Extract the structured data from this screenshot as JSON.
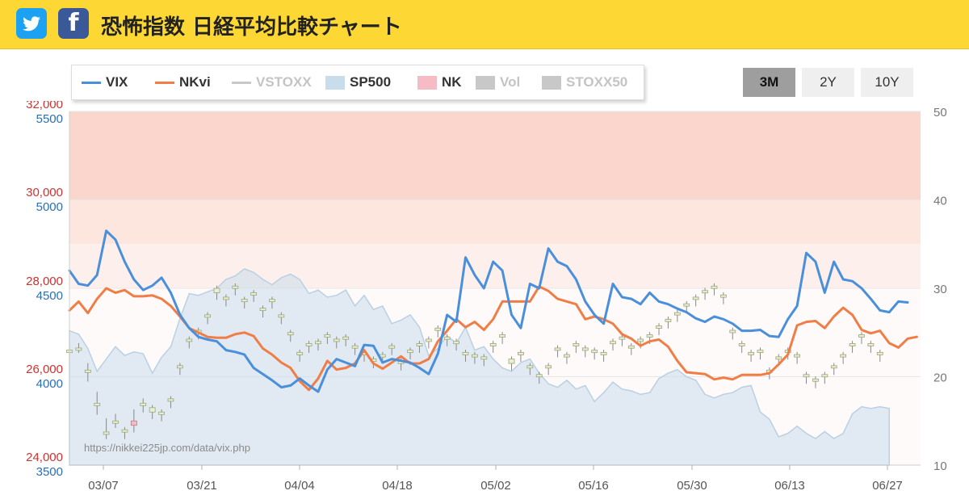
{
  "header": {
    "title": "恐怖指数 日経平均比較チャート",
    "twitter_icon": "twitter-icon",
    "facebook_icon": "facebook-icon",
    "facebook_glyph": "f",
    "colors": {
      "bar": "#fdd835",
      "twitter": "#1da1f2",
      "facebook": "#3b5998"
    }
  },
  "legend": [
    {
      "label": "VIX",
      "kind": "line",
      "color": "#4a8fdb",
      "dim": false
    },
    {
      "label": "NKvi",
      "kind": "line",
      "color": "#f07d45",
      "dim": false
    },
    {
      "label": "VSTOXX",
      "kind": "line",
      "color": "#c8c8c8",
      "dim": true
    },
    {
      "label": "SP500",
      "kind": "box",
      "color": "#c9dceb",
      "dim": false
    },
    {
      "label": "NK",
      "kind": "box",
      "color": "#f5bcc6",
      "dim": false
    },
    {
      "label": "Vol",
      "kind": "box",
      "color": "#c8c8c8",
      "dim": true
    },
    {
      "label": "STOXX50",
      "kind": "box",
      "color": "#c8c8c8",
      "dim": true
    }
  ],
  "range_buttons": [
    {
      "label": "3M",
      "active": true
    },
    {
      "label": "2Y",
      "active": false
    },
    {
      "label": "10Y",
      "active": false
    }
  ],
  "watermark": "https://nikkei225jp.com/data/vix.php",
  "chart_data": {
    "type": "line",
    "x_ticks": [
      "03/07",
      "03/21",
      "04/04",
      "04/18",
      "05/02",
      "05/16",
      "05/30",
      "06/13",
      "06/27"
    ],
    "y_left_nk": {
      "ticks": [
        "32,000",
        "30,000",
        "28,000",
        "26,000",
        "24,000"
      ],
      "range": [
        24000,
        32000
      ],
      "color": "#cc3333"
    },
    "y_left_sp": {
      "ticks": [
        "5500",
        "5000",
        "4500",
        "4000",
        "3500"
      ],
      "range": [
        3500,
        5500
      ],
      "color": "#2a6fb5"
    },
    "y_right": {
      "ticks": [
        "50",
        "40",
        "30",
        "20",
        "10"
      ],
      "range": [
        10,
        50
      ],
      "color": "#777777"
    },
    "zones": [
      {
        "from": 40,
        "to": 50,
        "color": "#fbd6cc"
      },
      {
        "from": 35,
        "to": 40,
        "color": "#fde6de"
      },
      {
        "from": 30,
        "to": 35,
        "color": "#fdf0ec"
      },
      {
        "from": 10,
        "to": 30,
        "color": "#fffafa"
      }
    ],
    "series": [
      {
        "name": "VIX",
        "color": "#4a8fdb",
        "values": [
          32,
          30.5,
          30.3,
          31.5,
          36.5,
          35.5,
          33,
          31,
          29.8,
          30.3,
          31.2,
          29.5,
          27,
          25.5,
          24.5,
          24.2,
          24,
          23,
          22.8,
          22.5,
          21,
          20.3,
          19.6,
          18.8,
          19,
          19.8,
          19,
          18.3,
          20.8,
          22,
          21.6,
          21.2,
          23.6,
          23.5,
          21.6,
          22,
          21.8,
          21.6,
          21,
          20.3,
          22.6,
          27,
          26.2,
          33.5,
          31.5,
          30,
          33,
          32,
          27,
          25.5,
          30.5,
          30,
          34.5,
          33,
          32.5,
          31,
          28.5,
          27,
          26,
          30.5,
          29,
          28.8,
          28.2,
          29.5,
          28.5,
          28.2,
          27.7,
          27.3,
          26.6,
          26.2,
          26.8,
          26.5,
          26,
          25.2,
          25.2,
          25.3,
          24.6,
          24.5,
          26.5,
          28,
          34,
          33,
          29.5,
          33,
          31,
          30.8,
          30,
          28.8,
          27.5,
          27.3,
          28.5,
          28.4
        ]
      },
      {
        "name": "NKvi",
        "color": "#f07d45",
        "values": [
          27.5,
          28.5,
          27.2,
          28.8,
          30,
          29.5,
          29.8,
          29.1,
          29.1,
          29.2,
          28.8,
          28,
          26.8,
          25.5,
          25,
          24.5,
          24.4,
          24.4,
          24.8,
          25,
          24.6,
          23.2,
          22.5,
          21.6,
          21,
          19.5,
          18.5,
          19.8,
          21.8,
          20.8,
          21,
          21.5,
          23,
          21.5,
          20.9,
          21.6,
          22.3,
          21.5,
          21.5,
          22,
          24,
          25.2,
          26.5,
          25.6,
          26.2,
          25.3,
          26.5,
          28.5,
          28.5,
          28.5,
          28.5,
          30.2,
          29.7,
          28.8,
          28.5,
          28.2,
          26.5,
          26.8,
          26.5,
          26,
          24.8,
          24.3,
          23.5,
          24,
          24.2,
          23.4,
          21.8,
          20.5,
          20.4,
          20.3,
          19.7,
          19.9,
          19.7,
          20.2,
          20.2,
          20.2,
          20.4,
          21.4,
          22.5,
          25.8,
          26.2,
          26.3,
          25.5,
          26.8,
          27.8,
          27,
          25.3,
          24.9,
          25.2,
          23.8,
          23.3,
          24.3,
          24.5
        ]
      },
      {
        "name": "SP500",
        "color": "#c9dceb",
        "values": [
          4260,
          4240,
          4160,
          4030,
          4100,
          4170,
          4120,
          4140,
          4130,
          4020,
          4110,
          4170,
          4330,
          4470,
          4460,
          4480,
          4500,
          4550,
          4570,
          4610,
          4590,
          4550,
          4520,
          4560,
          4580,
          4550,
          4470,
          4490,
          4450,
          4460,
          4490,
          4400,
          4460,
          4380,
          4400,
          4300,
          4320,
          4350,
          4280,
          4120,
          4160,
          4230,
          4190,
          4280,
          4150,
          4170,
          4100,
          4050,
          4030,
          4080,
          4100,
          4020,
          3960,
          3940,
          3980,
          3930,
          3950,
          3860,
          3910,
          3970,
          3930,
          3920,
          3900,
          3910,
          3990,
          4020,
          4040,
          4000,
          3980,
          3900,
          3880,
          3900,
          3910,
          3940,
          3950,
          3800,
          3760,
          3660,
          3680,
          3720,
          3680,
          3650,
          3690,
          3650,
          3680,
          3790,
          3830,
          3820,
          3830,
          3820
        ]
      },
      {
        "name": "NK",
        "color": "#f5bcc6",
        "candles": [
          [
            26550,
            26600,
            26500,
            26400
          ],
          [
            26650,
            26650,
            26700,
            26600
          ],
          [
            26150,
            26150,
            26250,
            25950
          ],
          [
            25400,
            25400,
            25600,
            25200
          ],
          [
            24750,
            24750,
            25000,
            24650
          ],
          [
            25000,
            25000,
            25100,
            24900
          ],
          [
            24750,
            24800,
            24700,
            24650
          ],
          [
            25000,
            24900,
            25200,
            24800
          ],
          [
            25350,
            25400,
            25450,
            25250
          ],
          [
            25200,
            25300,
            25150,
            25100
          ],
          [
            25150,
            25200,
            25100,
            25050
          ],
          [
            25450,
            25500,
            25400,
            25350
          ],
          [
            26200,
            26250,
            26150,
            26100
          ],
          [
            26800,
            26850,
            26750,
            26700
          ],
          [
            27000,
            27050,
            26950,
            26900
          ],
          [
            27350,
            27400,
            27300,
            27250
          ],
          [
            27900,
            28000,
            27850,
            27800
          ],
          [
            27750,
            27800,
            27700,
            27650
          ],
          [
            28000,
            28050,
            27950,
            27900
          ],
          [
            27700,
            27750,
            27650,
            27600
          ],
          [
            27850,
            27900,
            27800,
            27750
          ],
          [
            27500,
            27550,
            27450,
            27400
          ],
          [
            27700,
            27750,
            27650,
            27600
          ],
          [
            27350,
            27400,
            27300,
            27250
          ],
          [
            26950,
            27000,
            26900,
            26850
          ],
          [
            26500,
            26550,
            26450,
            26400
          ],
          [
            26700,
            26750,
            26650,
            26600
          ],
          [
            26750,
            26800,
            26700,
            26650
          ],
          [
            26900,
            26950,
            26850,
            26800
          ],
          [
            26800,
            26850,
            26750,
            26700
          ],
          [
            26850,
            26900,
            26800,
            26750
          ],
          [
            26650,
            26700,
            26600,
            26550
          ],
          [
            26500,
            26550,
            26450,
            26400
          ],
          [
            26350,
            26400,
            26300,
            26250
          ],
          [
            26450,
            26500,
            26400,
            26350
          ],
          [
            26650,
            26700,
            26600,
            26550
          ],
          [
            26300,
            26350,
            26250,
            26200
          ],
          [
            26550,
            26600,
            26500,
            26450
          ],
          [
            26700,
            26750,
            26650,
            26600
          ],
          [
            26800,
            26850,
            26750,
            26700
          ],
          [
            27050,
            27100,
            27000,
            26950
          ],
          [
            26850,
            26900,
            26800,
            26750
          ],
          [
            26750,
            26800,
            26700,
            26650
          ],
          [
            26500,
            26550,
            26450,
            26400
          ],
          [
            26450,
            26500,
            26400,
            26350
          ],
          [
            26400,
            26450,
            26350,
            26300
          ],
          [
            26700,
            26750,
            26650,
            26600
          ],
          [
            26900,
            26950,
            26850,
            26800
          ],
          [
            26300,
            26400,
            26250,
            26200
          ],
          [
            26500,
            26550,
            26450,
            26400
          ],
          [
            26200,
            26250,
            26150,
            26100
          ],
          [
            26000,
            26050,
            25950,
            25900
          ],
          [
            26200,
            26250,
            26150,
            26100
          ],
          [
            26600,
            26650,
            26550,
            26500
          ],
          [
            26450,
            26500,
            26400,
            26350
          ],
          [
            26700,
            26750,
            26650,
            26600
          ],
          [
            26600,
            26650,
            26550,
            26500
          ],
          [
            26550,
            26600,
            26500,
            26450
          ],
          [
            26500,
            26550,
            26450,
            26400
          ],
          [
            26750,
            26800,
            26700,
            26650
          ],
          [
            26850,
            26900,
            26800,
            26750
          ],
          [
            26650,
            26700,
            26600,
            26550
          ],
          [
            26800,
            26850,
            26750,
            26700
          ],
          [
            26900,
            26950,
            26850,
            26800
          ],
          [
            27100,
            27150,
            27050,
            27000
          ],
          [
            27250,
            27300,
            27200,
            27150
          ],
          [
            27400,
            27450,
            27350,
            27300
          ],
          [
            27600,
            27650,
            27550,
            27500
          ],
          [
            27750,
            27800,
            27700,
            27650
          ],
          [
            27900,
            27950,
            27850,
            27800
          ],
          [
            28000,
            28050,
            27950,
            27900
          ],
          [
            27800,
            27850,
            27750,
            27700
          ],
          [
            27000,
            27050,
            26950,
            26900
          ],
          [
            26700,
            26750,
            26650,
            26600
          ],
          [
            26500,
            26550,
            26450,
            26400
          ],
          [
            26550,
            26600,
            26500,
            26450
          ],
          [
            26100,
            26150,
            26050,
            26000
          ],
          [
            26400,
            26450,
            26350,
            26300
          ],
          [
            26550,
            26600,
            26500,
            26450
          ],
          [
            26450,
            26500,
            26400,
            26350
          ],
          [
            26000,
            26050,
            25950,
            25900
          ],
          [
            25900,
            25950,
            25850,
            25800
          ],
          [
            26000,
            26050,
            25950,
            25900
          ],
          [
            26200,
            26250,
            26150,
            26100
          ],
          [
            26450,
            26500,
            26400,
            26350
          ],
          [
            26700,
            26750,
            26650,
            26600
          ],
          [
            26900,
            26950,
            26850,
            26800
          ],
          [
            26700,
            26750,
            26650,
            26600
          ],
          [
            26500,
            26550,
            26450,
            26400
          ]
        ]
      }
    ],
    "grid": true
  }
}
